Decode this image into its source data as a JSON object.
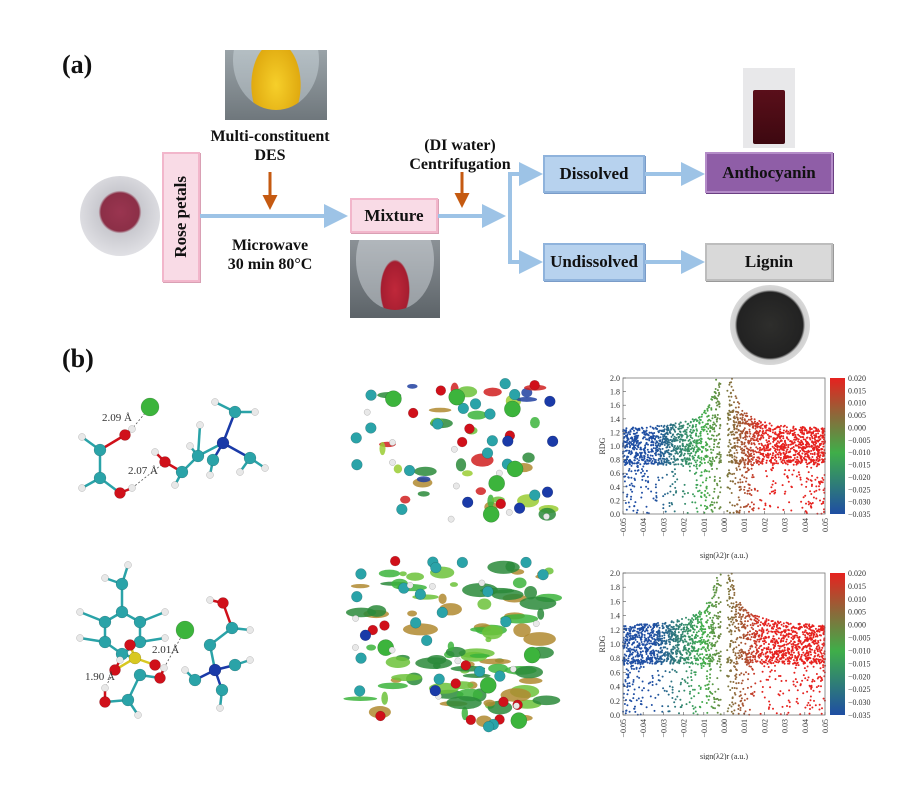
{
  "panel_a": {
    "label": "(a)",
    "raw_material": "Rose petals",
    "des_label_line1": "Multi-constituent",
    "des_label_line2": "DES",
    "condition_line1": "Microwave",
    "condition_line2": "30 min 80°C",
    "mixture": "Mixture",
    "step2_line1": "(DI water)",
    "step2_line2": "Centrifugation",
    "dissolved": "Dissolved",
    "undissolved": "Undissolved",
    "product1": "Anthocyanin",
    "product2": "Lignin",
    "colors": {
      "flow_arrow": "#9dc3e6",
      "process_arrow": "#c55a11",
      "pink_box": "#f9dbe6",
      "blue_box": "#b7d2ee",
      "purple_box": "#8f5ea7",
      "gray_box": "#d9d9d9"
    }
  },
  "panel_b": {
    "label": "(b)",
    "molecule_top": {
      "distances": [
        "2.09 Å",
        "2.07 Å"
      ]
    },
    "molecule_bottom": {
      "distances": [
        "2.01Å",
        "1.90 Å"
      ]
    }
  },
  "chart_data": [
    {
      "type": "scatter",
      "xlabel": "sign(λ2)r (a.u.)",
      "ylabel": "RDG",
      "xlim": [
        -0.05,
        0.05
      ],
      "ylim": [
        0.0,
        2.0
      ],
      "xticks": [
        "−0.05",
        "−0.04",
        "−0.03",
        "−0.02",
        "−0.01",
        "0.00",
        "0.01",
        "0.02",
        "0.03",
        "0.04",
        "0.05"
      ],
      "yticks": [
        "0.0",
        "0.2",
        "0.4",
        "0.6",
        "0.8",
        "1.0",
        "1.2",
        "1.4",
        "1.6",
        "1.8",
        "2.0"
      ],
      "colorbar": {
        "range": [
          -0.035,
          0.02
        ],
        "ticks": [
          "0.020",
          "0.015",
          "0.010",
          "0.005",
          "0.000",
          "−0.005",
          "−0.010",
          "−0.015",
          "−0.020",
          "−0.025",
          "−0.030",
          "−0.035"
        ],
        "colors": [
          "#1f4ea3",
          "#3fae49",
          "#8a6a3a",
          "#e6221f"
        ]
      },
      "grid": false
    },
    {
      "type": "scatter",
      "xlabel": "sign(λ2)r (a.u.)",
      "ylabel": "RDG",
      "xlim": [
        -0.05,
        0.05
      ],
      "ylim": [
        0.0,
        2.0
      ],
      "xticks": [
        "−0.05",
        "−0.04",
        "−0.03",
        "−0.02",
        "−0.01",
        "0.00",
        "0.01",
        "0.02",
        "0.03",
        "0.04",
        "0.05"
      ],
      "yticks": [
        "0.0",
        "0.2",
        "0.4",
        "0.6",
        "0.8",
        "1.0",
        "1.2",
        "1.4",
        "1.6",
        "1.8",
        "2.0"
      ],
      "colorbar": {
        "range": [
          -0.035,
          0.02
        ],
        "ticks": [
          "0.020",
          "0.015",
          "0.010",
          "0.005",
          "0.000",
          "−0.005",
          "−0.010",
          "−0.015",
          "−0.020",
          "−0.025",
          "−0.030",
          "−0.035"
        ],
        "colors": [
          "#1f4ea3",
          "#3fae49",
          "#8a6a3a",
          "#e6221f"
        ]
      },
      "grid": false
    }
  ]
}
